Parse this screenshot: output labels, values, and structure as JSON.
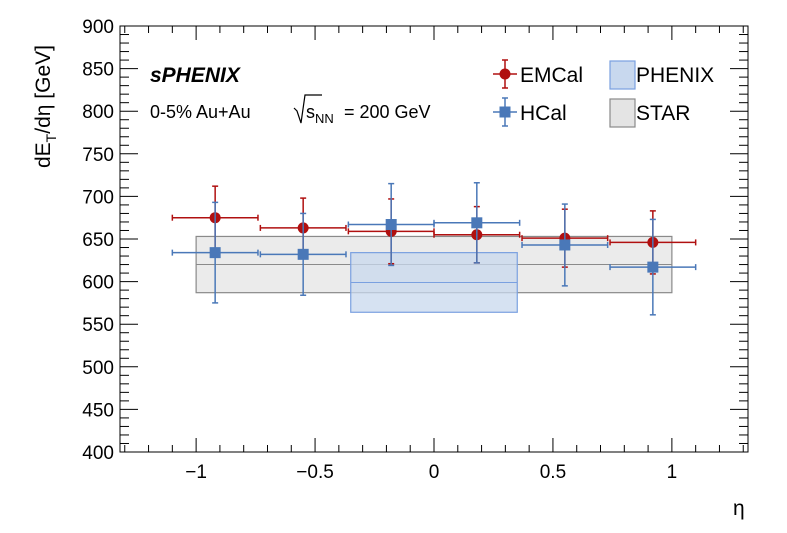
{
  "chart_data": {
    "type": "scatter",
    "experiment_label": "sPHENIX",
    "system_label": "0-5% Au+Au",
    "energy_label": {
      "sqrt": "√",
      "s": "s",
      "sub": "NN",
      "value": "= 200 GeV"
    },
    "xlabel": "η",
    "ylabel": {
      "main": "dE",
      "sub": "T",
      "rest": "/dη [GeV]"
    },
    "xlim": [
      -1.32,
      1.32
    ],
    "ylim": [
      400,
      900
    ],
    "xticks": [
      -1,
      -0.5,
      0,
      0.5,
      1
    ],
    "xtick_labels": [
      "−1",
      "−0.5",
      "0",
      "0.5",
      "1"
    ],
    "yticks": [
      400,
      450,
      500,
      550,
      600,
      650,
      700,
      750,
      800,
      850,
      900
    ],
    "ytick_labels": [
      "400",
      "450",
      "500",
      "550",
      "600",
      "650",
      "700",
      "750",
      "800",
      "850",
      "900"
    ],
    "legend_placement": "top-right",
    "series": [
      {
        "name": "EMCal",
        "color": "#b01010",
        "marker": "circle",
        "points": [
          {
            "x": -0.92,
            "xerr": 0.18,
            "y": 675,
            "yerr": 37
          },
          {
            "x": -0.55,
            "xerr": 0.18,
            "y": 663,
            "yerr": 35
          },
          {
            "x": -0.18,
            "xerr": 0.18,
            "y": 659,
            "yerr": 38
          },
          {
            "x": 0.18,
            "xerr": 0.18,
            "y": 655,
            "yerr": 33
          },
          {
            "x": 0.55,
            "xerr": 0.18,
            "y": 651,
            "yerr": 34
          },
          {
            "x": 0.92,
            "xerr": 0.18,
            "y": 646,
            "yerr": 37
          }
        ]
      },
      {
        "name": "HCal",
        "color": "#4a78b8",
        "marker": "square",
        "points": [
          {
            "x": -0.92,
            "xerr": 0.18,
            "y": 634,
            "yerr": 59
          },
          {
            "x": -0.55,
            "xerr": 0.18,
            "y": 632,
            "yerr": 48
          },
          {
            "x": -0.18,
            "xerr": 0.18,
            "y": 667,
            "yerr": 48
          },
          {
            "x": 0.18,
            "xerr": 0.18,
            "y": 669,
            "yerr": 47
          },
          {
            "x": 0.55,
            "xerr": 0.18,
            "y": 643,
            "yerr": 48
          },
          {
            "x": 0.92,
            "xerr": 0.18,
            "y": 617,
            "yerr": 56
          }
        ]
      }
    ],
    "bands": [
      {
        "name": "PHENIX",
        "x": [
          -0.35,
          0.35
        ],
        "y_low": 564,
        "y_high": 634,
        "y_central": 599,
        "fill": "#c8d8ee",
        "stroke": "#7aa0e0"
      },
      {
        "name": "STAR",
        "x": [
          -1.0,
          1.0
        ],
        "y_low": 587,
        "y_high": 653,
        "y_central": 620,
        "fill": "#e4e4e4",
        "stroke": "#8a8a8a"
      }
    ],
    "grid": false
  }
}
